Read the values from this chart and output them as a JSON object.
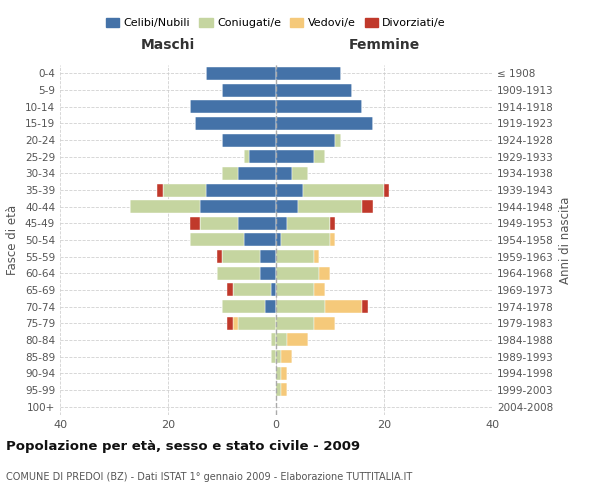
{
  "age_groups": [
    "0-4",
    "5-9",
    "10-14",
    "15-19",
    "20-24",
    "25-29",
    "30-34",
    "35-39",
    "40-44",
    "45-49",
    "50-54",
    "55-59",
    "60-64",
    "65-69",
    "70-74",
    "75-79",
    "80-84",
    "85-89",
    "90-94",
    "95-99",
    "100+"
  ],
  "birth_years": [
    "2004-2008",
    "1999-2003",
    "1994-1998",
    "1989-1993",
    "1984-1988",
    "1979-1983",
    "1974-1978",
    "1969-1973",
    "1964-1968",
    "1959-1963",
    "1954-1958",
    "1949-1953",
    "1944-1948",
    "1939-1943",
    "1934-1938",
    "1929-1933",
    "1924-1928",
    "1919-1923",
    "1914-1918",
    "1909-1913",
    "≤ 1908"
  ],
  "maschi": {
    "celibi": [
      13,
      10,
      16,
      15,
      10,
      5,
      7,
      13,
      14,
      7,
      6,
      3,
      3,
      1,
      2,
      0,
      0,
      0,
      0,
      0,
      0
    ],
    "coniugati": [
      0,
      0,
      0,
      0,
      0,
      1,
      3,
      8,
      13,
      7,
      10,
      7,
      8,
      7,
      8,
      7,
      1,
      1,
      0,
      0,
      0
    ],
    "vedovi": [
      0,
      0,
      0,
      0,
      0,
      0,
      0,
      0,
      0,
      0,
      0,
      0,
      0,
      0,
      0,
      1,
      0,
      0,
      0,
      0,
      0
    ],
    "divorziati": [
      0,
      0,
      0,
      0,
      0,
      0,
      0,
      1,
      0,
      2,
      0,
      1,
      0,
      1,
      0,
      1,
      0,
      0,
      0,
      0,
      0
    ]
  },
  "femmine": {
    "nubili": [
      12,
      14,
      16,
      18,
      11,
      7,
      3,
      5,
      4,
      2,
      1,
      0,
      0,
      0,
      0,
      0,
      0,
      0,
      0,
      0,
      0
    ],
    "coniugate": [
      0,
      0,
      0,
      0,
      1,
      2,
      3,
      15,
      12,
      8,
      9,
      7,
      8,
      7,
      9,
      7,
      2,
      1,
      1,
      1,
      0
    ],
    "vedove": [
      0,
      0,
      0,
      0,
      0,
      0,
      0,
      0,
      0,
      0,
      1,
      1,
      2,
      2,
      7,
      4,
      4,
      2,
      1,
      1,
      0
    ],
    "divorziate": [
      0,
      0,
      0,
      0,
      0,
      0,
      0,
      1,
      2,
      1,
      0,
      0,
      0,
      0,
      1,
      0,
      0,
      0,
      0,
      0,
      0
    ]
  },
  "colors": {
    "celibi": "#4472a8",
    "coniugati": "#c5d5a0",
    "vedovi": "#f5c97a",
    "divorziati": "#c0392b"
  },
  "title": "Popolazione per età, sesso e stato civile - 2009",
  "subtitle": "COMUNE DI PREDOI (BZ) - Dati ISTAT 1° gennaio 2009 - Elaborazione TUTTITALIA.IT",
  "ylabel_left": "Fasce di età",
  "ylabel_right": "Anni di nascita",
  "xlabel_left": "Maschi",
  "xlabel_right": "Femmine",
  "xlim": 40,
  "background_color": "#ffffff",
  "grid_color": "#cccccc"
}
